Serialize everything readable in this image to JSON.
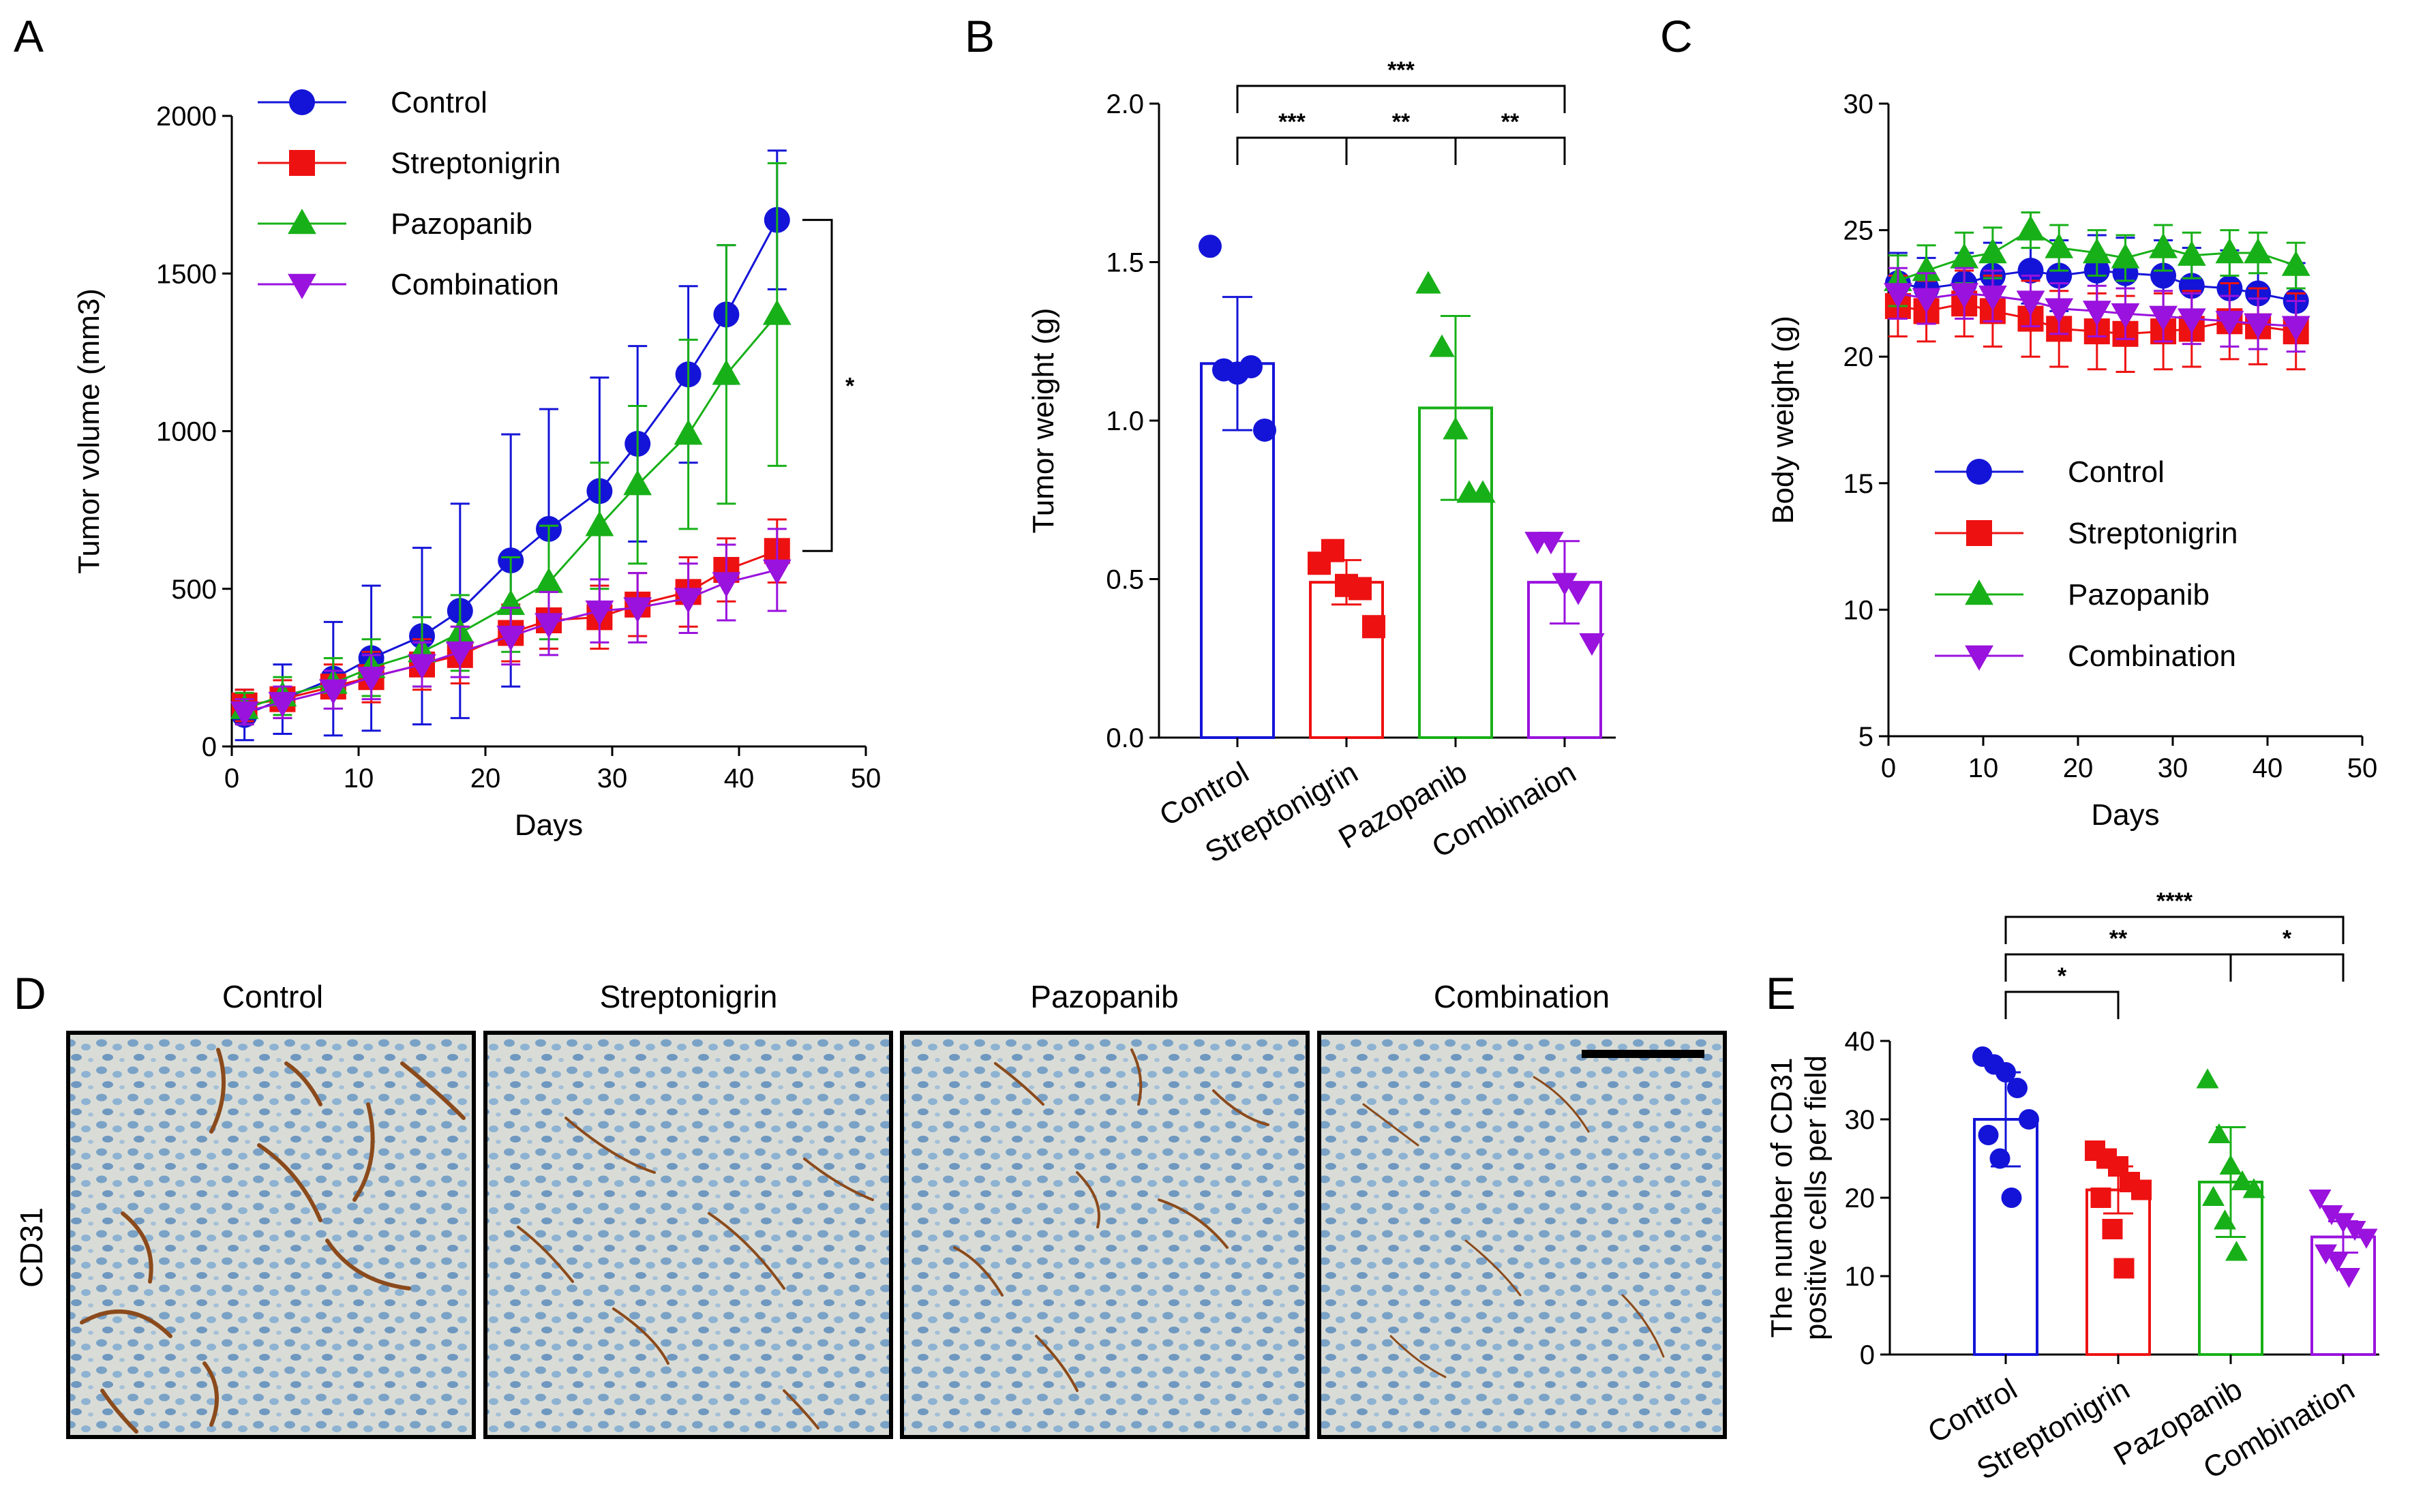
{
  "colors": {
    "Control": "#1414d8",
    "Streptonigrin": "#ee1111",
    "Pazopanib": "#18b018",
    "Combination": "#9912dd"
  },
  "panel_labels": [
    "A",
    "B",
    "C",
    "D",
    "E"
  ],
  "microscopy": {
    "row_label": "CD31",
    "columns": [
      "Control",
      "Streptonigrin",
      "Pazopanib",
      "Combination"
    ],
    "scale_bar": "scale-bar"
  },
  "chart_data": [
    {
      "panel": "A",
      "type": "line",
      "xlabel": "Days",
      "ylabel": "Tumor volume (mm3)",
      "xlim": [
        0,
        50
      ],
      "ylim": [
        0,
        2000
      ],
      "xticks": [
        0,
        10,
        20,
        30,
        40,
        50
      ],
      "yticks": [
        0,
        500,
        1000,
        1500,
        2000
      ],
      "x": [
        1,
        4,
        8,
        11,
        15,
        18,
        22,
        25,
        29,
        32,
        36,
        39,
        43
      ],
      "legend": [
        "Control",
        "Streptonigrin",
        "Pazopanib",
        "Combination"
      ],
      "legend_position": "top-left",
      "significance": "*",
      "series": [
        {
          "name": "Control",
          "marker": "circle",
          "values": [
            100,
            150,
            215,
            280,
            350,
            430,
            590,
            690,
            810,
            960,
            1180,
            1370,
            1670
          ],
          "error": [
            80,
            110,
            180,
            230,
            280,
            340,
            400,
            380,
            360,
            310,
            280,
            220,
            220
          ]
        },
        {
          "name": "Streptonigrin",
          "marker": "square",
          "values": [
            130,
            150,
            190,
            220,
            260,
            290,
            360,
            400,
            410,
            450,
            490,
            560,
            620
          ],
          "error": [
            50,
            60,
            70,
            80,
            80,
            90,
            90,
            90,
            100,
            100,
            110,
            100,
            100
          ]
        },
        {
          "name": "Pazopanib",
          "marker": "triangle-up",
          "values": [
            120,
            160,
            200,
            250,
            300,
            360,
            450,
            520,
            700,
            830,
            990,
            1180,
            1370
          ],
          "error": [
            50,
            60,
            80,
            90,
            110,
            120,
            150,
            180,
            200,
            250,
            300,
            410,
            480
          ]
        },
        {
          "name": "Combination",
          "marker": "triangle-down",
          "values": [
            110,
            140,
            180,
            220,
            260,
            300,
            350,
            390,
            430,
            440,
            470,
            520,
            560
          ],
          "error": [
            40,
            50,
            60,
            70,
            70,
            80,
            90,
            100,
            100,
            110,
            110,
            120,
            130
          ]
        }
      ]
    },
    {
      "panel": "B",
      "type": "bar",
      "ylabel": "Tumor weight (g)",
      "ylim": [
        0,
        2.0
      ],
      "yticks": [
        0.0,
        0.5,
        1.0,
        1.5,
        2.0
      ],
      "categories": [
        "Control",
        "Streptonigrin",
        "Pazopanib",
        "Combinaion"
      ],
      "series_colors": [
        "Control",
        "Streptonigrin",
        "Pazopanib",
        "Combination"
      ],
      "markers": [
        "circle",
        "square",
        "triangle-up",
        "triangle-down"
      ],
      "values": [
        1.18,
        0.49,
        1.04,
        0.49
      ],
      "error": [
        0.21,
        0.07,
        0.29,
        0.13
      ],
      "points": [
        [
          1.55,
          1.16,
          1.15,
          1.17,
          0.97
        ],
        [
          0.55,
          0.59,
          0.48,
          0.47,
          0.35
        ],
        [
          1.43,
          1.23,
          0.97,
          0.77,
          0.77
        ],
        [
          0.62,
          0.62,
          0.49,
          0.46,
          0.3
        ]
      ],
      "comparisons": [
        {
          "from": 0,
          "to": 3,
          "label": "***",
          "level": 2
        },
        {
          "from": 0,
          "to": 1,
          "label": "***",
          "level": 1
        },
        {
          "from": 1,
          "to": 2,
          "label": "**",
          "level": 1
        },
        {
          "from": 2,
          "to": 3,
          "label": "**",
          "level": 1
        }
      ]
    },
    {
      "panel": "C",
      "type": "line",
      "xlabel": "Days",
      "ylabel": "Body weight (g)",
      "xlim": [
        0,
        50
      ],
      "ylim": [
        5,
        30
      ],
      "xticks": [
        0,
        10,
        20,
        30,
        40,
        50
      ],
      "yticks": [
        5,
        10,
        15,
        20,
        25,
        30
      ],
      "x": [
        1,
        4,
        8,
        11,
        15,
        18,
        22,
        25,
        29,
        32,
        36,
        39,
        43
      ],
      "legend": [
        "Control",
        "Streptonigrin",
        "Pazopanib",
        "Combination"
      ],
      "legend_position": "center-left",
      "series": [
        {
          "name": "Control",
          "marker": "circle",
          "values": [
            22.9,
            22.7,
            22.9,
            23.2,
            23.4,
            23.2,
            23.4,
            23.3,
            23.2,
            22.8,
            22.7,
            22.5,
            22.2
          ],
          "error": [
            1.2,
            1.2,
            1.2,
            1.3,
            1.3,
            1.4,
            1.4,
            1.4,
            1.4,
            1.5,
            1.5,
            1.5,
            1.5
          ]
        },
        {
          "name": "Streptonigrin",
          "marker": "square",
          "values": [
            22.0,
            21.8,
            22.1,
            21.8,
            21.5,
            21.1,
            21.0,
            20.9,
            21.0,
            21.1,
            21.4,
            21.2,
            21.0
          ],
          "error": [
            1.2,
            1.2,
            1.3,
            1.4,
            1.5,
            1.5,
            1.5,
            1.5,
            1.5,
            1.5,
            1.5,
            1.5,
            1.5
          ]
        },
        {
          "name": "Pazopanib",
          "marker": "triangle-up",
          "values": [
            23.0,
            23.4,
            23.9,
            24.1,
            25.0,
            24.3,
            24.1,
            23.9,
            24.3,
            24.0,
            24.1,
            24.1,
            23.6
          ],
          "error": [
            1.0,
            1.0,
            1.0,
            1.0,
            0.7,
            0.9,
            0.9,
            0.9,
            0.9,
            0.9,
            0.9,
            0.8,
            0.9
          ]
        },
        {
          "name": "Combination",
          "marker": "triangle-down",
          "values": [
            22.5,
            22.3,
            22.5,
            22.4,
            22.2,
            21.9,
            21.8,
            21.7,
            21.6,
            21.5,
            21.4,
            21.3,
            21.2
          ],
          "error": [
            1.0,
            1.0,
            1.0,
            1.0,
            1.0,
            1.0,
            1.0,
            1.0,
            1.0,
            1.0,
            1.0,
            1.0,
            1.0
          ]
        }
      ]
    },
    {
      "panel": "E",
      "type": "bar",
      "ylabel_lines": [
        "The number of CD31",
        "positive cells per field"
      ],
      "ylim": [
        0,
        40
      ],
      "yticks": [
        0,
        10,
        20,
        30,
        40
      ],
      "categories": [
        "Control",
        "Streptonigrin",
        "Pazopanib",
        "Combination"
      ],
      "series_colors": [
        "Control",
        "Streptonigrin",
        "Pazopanib",
        "Combination"
      ],
      "markers": [
        "circle",
        "square",
        "triangle-up",
        "triangle-down"
      ],
      "values": [
        30,
        21,
        22,
        15
      ],
      "error": [
        6,
        3,
        7,
        2
      ],
      "points": [
        [
          38,
          37,
          36,
          34,
          30,
          28,
          25,
          20
        ],
        [
          26,
          25,
          24,
          22,
          21,
          20,
          16,
          11
        ],
        [
          35,
          28,
          24,
          22,
          21,
          20,
          17,
          13
        ],
        [
          20,
          18,
          17,
          16,
          15,
          13,
          12,
          10
        ]
      ],
      "comparisons": [
        {
          "from": 0,
          "to": 3,
          "label": "****",
          "level": 3
        },
        {
          "from": 0,
          "to": 2,
          "label": "**",
          "level": 2
        },
        {
          "from": 2,
          "to": 3,
          "label": "*",
          "level": 2
        },
        {
          "from": 0,
          "to": 1,
          "label": "*",
          "level": 1
        }
      ]
    }
  ]
}
